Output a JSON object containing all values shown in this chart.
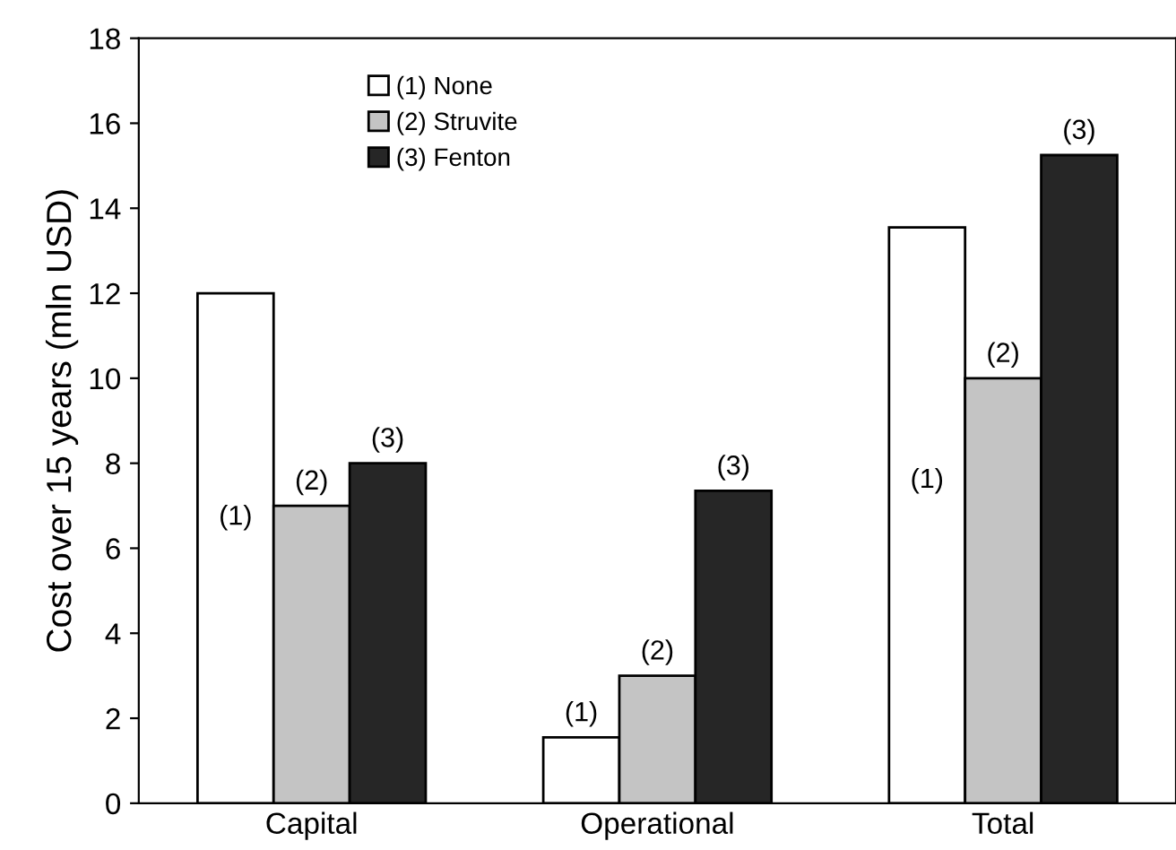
{
  "chart_data": {
    "type": "bar",
    "ylabel": "Cost over 15 years (mln USD)",
    "categories": [
      "Capital",
      "Operational",
      "Total"
    ],
    "series": [
      {
        "name": "(1) None",
        "color": "#ffffff",
        "values": [
          12.0,
          1.55,
          13.55
        ]
      },
      {
        "name": "(2) Struvite",
        "color": "#c4c4c4",
        "values": [
          7.0,
          3.0,
          10.0
        ]
      },
      {
        "name": "(3) Fenton",
        "color": "#262626",
        "values": [
          8.0,
          7.35,
          15.25
        ]
      }
    ],
    "annotations": [
      "(1)",
      "(2)",
      "(3)",
      "(1)",
      "(2)",
      "(3)",
      "(1)",
      "(2)",
      "(3)"
    ],
    "ylim": [
      0,
      18
    ],
    "yticks": [
      0,
      2,
      4,
      6,
      8,
      10,
      12,
      14,
      16,
      18
    ],
    "grid": false,
    "legend": "top left"
  }
}
